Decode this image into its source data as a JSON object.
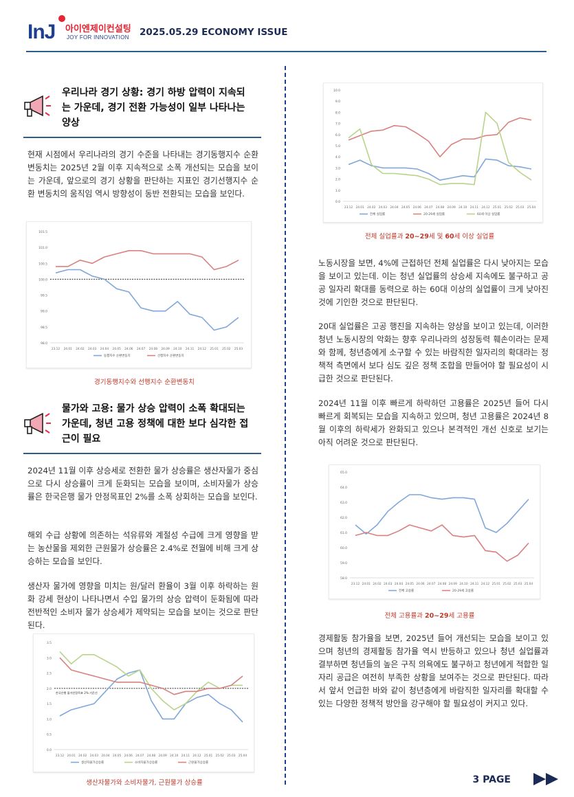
{
  "header": {
    "logo_main": "InJ",
    "logo_korean": "아이엔제이컨설팅",
    "logo_tagline": "JOY FOR INNOVATION",
    "issue_label": "2025.05.29 ECONOMY ISSUE"
  },
  "section1": {
    "title_lines": [
      "우리나라 경기 상황: 경기 하방 압력이 지속되",
      "는 가운데, 경기 전환 가능성이 일부 나타나는",
      "양상"
    ],
    "paragraph": "현재 시점에서 우리나라의 경기 수준을 나타내는 경기동행지수 순환변동치는 2025년 2월 이후 지속적으로 소폭 개선되는 모습을 보이는 가운데, 앞으로의 경기 상황을 판단하는 지표인 경기선행지수 순환 변동치의 움직임 역시 방향성이 동반 전환되는 모습을 보인다."
  },
  "section2": {
    "title_lines": [
      "물가와 고용: 물가 상승 압력이 소폭 확대되는",
      "가운데, 청년 고용 정책에 대한 보다 심각한 접",
      "근이 필요"
    ],
    "paragraphs": [
      "2024년 11월 이후 상승세로 전환한 물가 상승률은 생산자물가 중심으로 다시 상승률이 크게 둔화되는 모습을 보이며, 소비자물가 상승률은 한국은행 물가 안정목표인 2%를 소폭 상회하는 모습을 보인다.",
      "해외 수급 상황에 의존하는 석유류와 계절성 수급에 크게 영향을 받는 농산물을 제외한 근원물가 상승률은 2.4%로 전월에 비해 크게 상승하는 모습을 보인다.",
      "생산자 물가에 영향을 미치는 원/달러 환율이 3월 이후 하락하는 원화 강세 현상이 나타나면서 수입 물가의 상승 압력이 둔화됨에 따라 전반적인 소비자 물가 상승세가 제약되는 모습을 보이는 것으로 판단된다."
    ]
  },
  "right_column": {
    "paragraphs": [
      "노동시장을 보면, 4%에 근접하던 전체 실업률은 다시 낮아지는 모습을 보이고 있는데. 이는 청년 실업률의 상승세 지속에도 불구하고 공공 일자리 확대를 동력으로 하는 60대 이상의 실업률이 크게 낮아진 것에 기인한 것으로 판단된다.",
      "20대 실업률은 고공 행진을 지속하는 양상을 보이고 있는데, 이러한 청년 노동시장의 악화는 향후 우리나라의 성장동력 훼손이라는 문제와 함께, 청년층에게 소구할 수 있는 바람직한 일자리의 확대라는 정책적 측면에서 보다 심도 깊은 정책 조합을 만들어야 할 필요성이 시급한 것으로 판단된다.",
      "2024년 11월 이후 빠르게 하락하던 고용률은 2025년 들어 다시 빠르게 회복되는 모습을 지속하고 있으며, 청년 고용률은 2024년 8월 이후의 하락세가 완화되고 있으나 본격적인 개선 신호로 보기는 아직 어려운 것으로 판단된다.",
      "경제활동 참가율을 보면, 2025년 들어 개선되는 모습을 보이고 있으며 청년의 경제활동 참가율 역시 반등하고 있으나 청년 실업률과 결부하면 청년들의 높은 구직 의욕에도 불구하고 청년에게 적합한 일자리 공급은 여전히 부족한 상황을 보여주는 것으로 판단된다. 따라서 앞서 언급한 바와 같이 청년층에게 바람직한 일자리를 확대할 수 있는 다양한 정책적 방안을 강구해야 할 필요성이 커지고 있다."
    ]
  },
  "captions": {
    "chart1": "경기동행지수와 선행지수 순환변동치",
    "chart2": "생산자물가와 소비자물가, 근원물가 상승률",
    "chart3_pre": "전체 실업률과 ",
    "chart3_b1": "20~29",
    "chart3_mid": "세 및 ",
    "chart3_b2": "60",
    "chart3_post": "세 이상 실업률",
    "chart4_pre": "전체 고용률과 ",
    "chart4_b1": "20~29",
    "chart4_post": "세 고용률"
  },
  "footer": {
    "page_label": "3 PAGE"
  },
  "colors": {
    "blue": "#7fa7d9",
    "red": "#d98080",
    "green": "#b9d38a",
    "title_navy": "#1c2b55",
    "rule": "#2e5c8a"
  },
  "chart_data": [
    {
      "id": "chart1",
      "type": "line",
      "title": "",
      "categories": [
        "23.12",
        "24.01",
        "24.02",
        "24.03",
        "24.04",
        "24.05",
        "24.06",
        "24.07",
        "24.08",
        "24.09",
        "24.10",
        "24.11",
        "24.12",
        "25.01",
        "25.02",
        "25.03"
      ],
      "y_ticks": [
        "98.0",
        "98.5",
        "99.0",
        "99.5",
        "100.0",
        "100.5",
        "101.0",
        "101.5"
      ],
      "ylim": [
        98.0,
        101.5
      ],
      "reference_line": 100.0,
      "series": [
        {
          "name": "동행지수 순환변동치",
          "color": "#7fa7d9",
          "values": [
            100.2,
            100.3,
            100.3,
            100.1,
            100.0,
            99.7,
            99.6,
            99.1,
            99.0,
            99.0,
            99.3,
            98.9,
            98.8,
            98.4,
            98.5,
            98.8
          ]
        },
        {
          "name": "선행지수 순환변동치",
          "color": "#d98080",
          "values": [
            100.4,
            100.4,
            100.6,
            100.5,
            100.7,
            100.8,
            100.9,
            100.9,
            100.8,
            100.8,
            100.8,
            100.8,
            100.7,
            100.3,
            100.4,
            100.6
          ]
        }
      ]
    },
    {
      "id": "chart2",
      "type": "line",
      "title": "",
      "categories": [
        "23.12",
        "24.01",
        "24.02",
        "24.03",
        "24.04",
        "24.05",
        "24.06",
        "24.07",
        "24.08",
        "24.09",
        "24.10",
        "24.11",
        "24.12",
        "25.01",
        "25.02",
        "25.03",
        "25.04"
      ],
      "y_ticks": [
        "0.0",
        "0.5",
        "1.0",
        "1.5",
        "2.0",
        "2.5",
        "3.0",
        "3.5"
      ],
      "ylim": [
        0.0,
        3.5
      ],
      "reference_line": 2.0,
      "reference_label": "한국은행 물가안정목표 2% 기준선",
      "series": [
        {
          "name": "생산자물가상승률",
          "color": "#7fa7d9",
          "values": [
            1.1,
            1.3,
            1.4,
            1.5,
            1.9,
            2.3,
            2.5,
            2.6,
            1.6,
            1.0,
            1.0,
            1.5,
            1.7,
            1.8,
            1.5,
            1.3,
            0.9
          ]
        },
        {
          "name": "소비자물가상승률",
          "color": "#b9d38a",
          "values": [
            3.2,
            2.8,
            3.1,
            3.1,
            2.9,
            2.7,
            2.4,
            2.6,
            2.0,
            1.6,
            1.3,
            1.5,
            1.9,
            2.2,
            2.0,
            2.1,
            2.1
          ]
        },
        {
          "name": "근원물가상승률",
          "color": "#d98080",
          "values": [
            3.0,
            2.6,
            2.5,
            2.4,
            2.3,
            2.2,
            2.2,
            2.2,
            2.1,
            2.0,
            1.8,
            1.9,
            1.9,
            2.0,
            2.0,
            2.1,
            2.4
          ]
        }
      ]
    },
    {
      "id": "chart3",
      "type": "line",
      "title": "",
      "categories": [
        "23.12",
        "24.01",
        "24.02",
        "24.03",
        "24.04",
        "24.05",
        "24.06",
        "24.07",
        "24.08",
        "24.09",
        "24.10",
        "24.11",
        "24.12",
        "25.01",
        "25.02",
        "25.03",
        "25.04"
      ],
      "y_ticks": [
        "0.0",
        "1.0",
        "2.0",
        "3.0",
        "4.0",
        "5.0",
        "6.0",
        "7.0",
        "8.0",
        "9.0",
        "10.0"
      ],
      "ylim": [
        0.0,
        10.0
      ],
      "series": [
        {
          "name": "전체 실업률",
          "color": "#7fa7d9",
          "values": [
            3.3,
            3.7,
            3.2,
            3.0,
            3.0,
            3.0,
            2.9,
            2.5,
            1.9,
            2.1,
            2.3,
            2.2,
            3.8,
            3.7,
            3.2,
            3.1,
            2.9
          ]
        },
        {
          "name": "20-29세 실업률",
          "color": "#d98080",
          "values": [
            5.5,
            5.9,
            6.3,
            6.4,
            6.8,
            6.7,
            6.1,
            5.4,
            4.0,
            5.1,
            5.6,
            5.6,
            5.9,
            6.0,
            7.1,
            7.5,
            7.3
          ]
        },
        {
          "name": "60세 이상 실업률",
          "color": "#b9d38a",
          "values": [
            5.7,
            6.5,
            3.3,
            2.5,
            2.5,
            2.4,
            2.3,
            2.0,
            1.5,
            1.6,
            1.6,
            1.5,
            8.0,
            7.0,
            3.5,
            2.6,
            1.9
          ]
        }
      ]
    },
    {
      "id": "chart4",
      "type": "line",
      "title": "",
      "categories": [
        "23.12",
        "24.01",
        "24.02",
        "24.03",
        "24.04",
        "24.05",
        "24.06",
        "24.07",
        "24.08",
        "24.09",
        "24.10",
        "24.11",
        "24.12",
        "25.01",
        "25.02",
        "25.03",
        "25.04"
      ],
      "y_ticks": [
        "58.0",
        "59.0",
        "60.0",
        "61.0",
        "62.0",
        "63.0",
        "64.0",
        "65.0"
      ],
      "ylim": [
        58.0,
        65.0
      ],
      "series": [
        {
          "name": "전체 고용률",
          "color": "#7fa7d9",
          "values": [
            61.5,
            60.9,
            61.5,
            62.4,
            63.0,
            63.5,
            63.5,
            63.3,
            63.2,
            63.3,
            63.3,
            63.2,
            61.3,
            61.0,
            61.6,
            62.4,
            63.2
          ]
        },
        {
          "name": "20-29세 고용률",
          "color": "#d98080",
          "values": [
            60.8,
            61.0,
            60.8,
            60.8,
            61.1,
            61.5,
            61.3,
            61.1,
            61.5,
            60.8,
            60.7,
            60.8,
            59.8,
            59.7,
            59.1,
            59.5,
            60.3
          ]
        }
      ]
    }
  ]
}
